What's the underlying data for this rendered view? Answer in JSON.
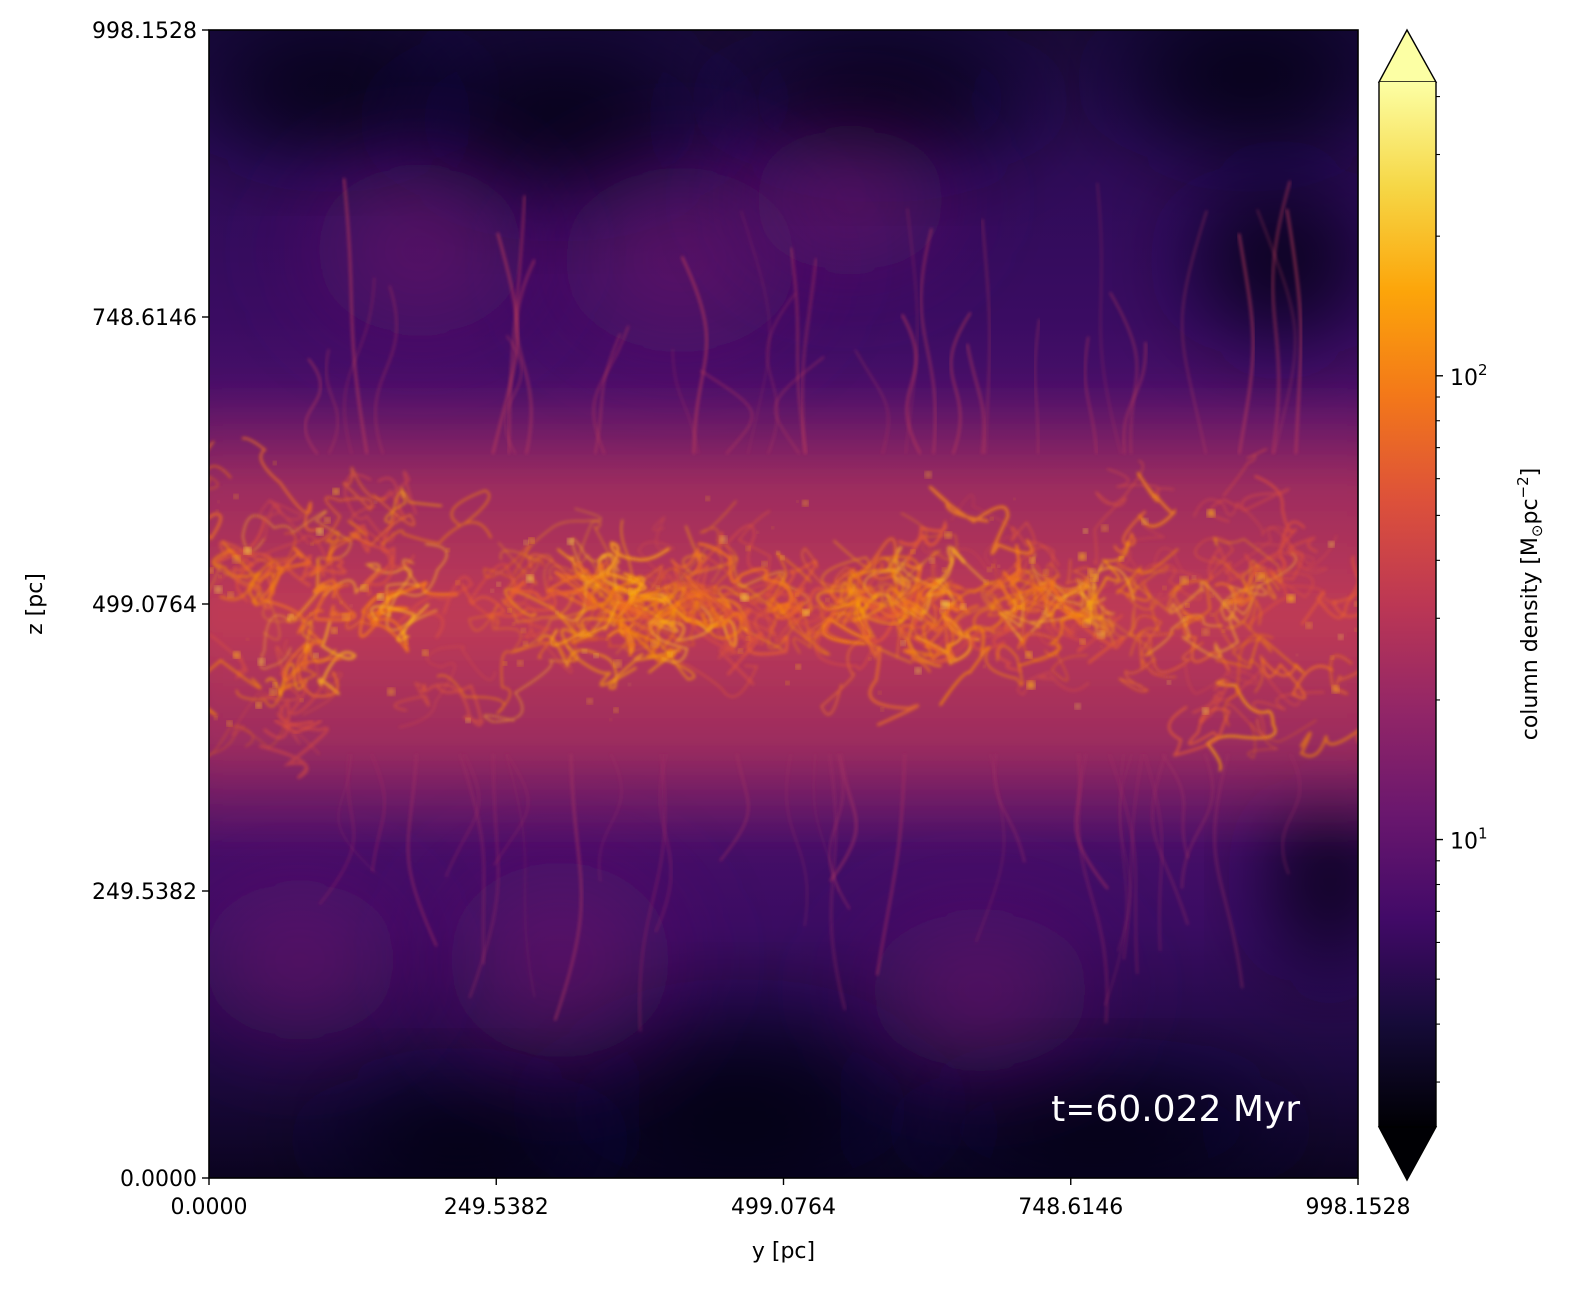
{
  "chart_data": {
    "type": "heatmap",
    "title": "",
    "xlabel": "y [pc]",
    "ylabel": "z [pc]",
    "xlim": [
      0.0,
      998.1528
    ],
    "ylim": [
      0.0,
      998.1528
    ],
    "x_ticks": [
      "0.0000",
      "249.5382",
      "499.0764",
      "748.6146",
      "998.1528"
    ],
    "y_ticks": [
      "0.0000",
      "249.5382",
      "499.0764",
      "748.6146",
      "998.1528"
    ],
    "x_tick_values": [
      0.0,
      249.5382,
      499.0764,
      748.6146,
      998.1528
    ],
    "y_tick_values": [
      0.0,
      249.5382,
      499.0764,
      748.6146,
      998.1528
    ],
    "annotation": "t=60.022 Myr",
    "colormap": "inferno",
    "colorbar": {
      "label": "column density [M",
      "label_sub": "⊙",
      "label_tail": "pc",
      "label_sup": "−2",
      "label_end": "]",
      "scale": "log",
      "extend": "both",
      "range": [
        2.4,
        430
      ],
      "major_ticks": [
        {
          "base": "10",
          "exp": "2",
          "value": 100
        },
        {
          "base": "10",
          "exp": "1",
          "value": 10
        }
      ],
      "minor_ticks": [
        3,
        4,
        5,
        6,
        7,
        8,
        9,
        20,
        30,
        40,
        50,
        60,
        70,
        80,
        90,
        200,
        300,
        400
      ]
    },
    "description_of_structure": {
      "dense_layer_center_z": 499.0764,
      "dense_layer_half_thickness": 160,
      "peak_column_density": 300,
      "background_column_density": 4
    }
  },
  "colors": {
    "inferno_0": "#000004",
    "inferno_1": "#320a5e",
    "inferno_2": "#781c6d",
    "inferno_3": "#bc3754",
    "inferno_4": "#ed6925",
    "inferno_5": "#fbb61a",
    "inferno_6": "#fcffa4"
  }
}
